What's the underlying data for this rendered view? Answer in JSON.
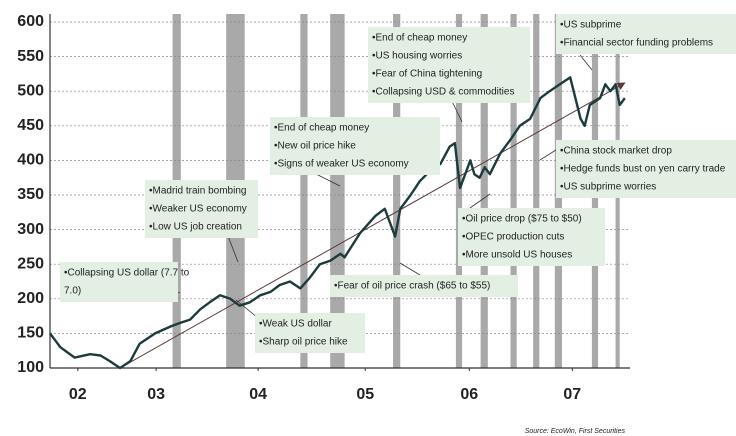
{
  "chart_data": {
    "type": "line",
    "x": [
      2002.47,
      2002.52,
      2002.57,
      2002.71,
      2002.86,
      2002.96,
      2003.05,
      2003.15,
      2003.25,
      2003.34,
      2003.49,
      2003.64,
      2003.73,
      2003.83,
      2003.93,
      2004.02,
      2004.12,
      2004.22,
      2004.31,
      2004.41,
      2004.51,
      2004.61,
      2004.7,
      2004.8,
      2004.9,
      2004.99,
      2005.09,
      2005.19,
      2005.29,
      2005.33,
      2005.48,
      2005.63,
      2005.72,
      2005.82,
      2005.87,
      2005.97,
      2006.06,
      2006.16,
      2006.26,
      2006.35,
      2006.4,
      2006.45,
      2006.5,
      2006.55,
      2006.59,
      2006.64,
      2006.69,
      2006.74,
      2006.84,
      2006.94,
      2007.03,
      2007.13,
      2007.23,
      2007.32,
      2007.42,
      2007.52,
      2007.57,
      2007.62,
      2007.66,
      2007.71,
      2007.81,
      2007.86,
      2007.91,
      2007.96,
      2008.0,
      2008.05
    ],
    "values": [
      150,
      140,
      130,
      115,
      120,
      118,
      110,
      100,
      110,
      135,
      150,
      160,
      165,
      170,
      185,
      195,
      205,
      200,
      190,
      195,
      205,
      210,
      220,
      225,
      215,
      230,
      250,
      255,
      265,
      260,
      295,
      320,
      330,
      290,
      330,
      350,
      370,
      385,
      395,
      420,
      425,
      360,
      380,
      400,
      380,
      375,
      390,
      380,
      410,
      430,
      450,
      460,
      490,
      500,
      510,
      520,
      490,
      460,
      450,
      480,
      490,
      510,
      500,
      510,
      480,
      490
    ],
    "color": "#1c3b3d",
    "trend_line": {
      "x": [
        2003.15,
        2008.05
      ],
      "values": [
        100,
        512
      ],
      "color": "#5a3a3a"
    },
    "shaded_periods": [
      [
        2003.66,
        2003.74
      ],
      [
        2004.18,
        2004.36
      ],
      [
        2004.9,
        2004.97
      ],
      [
        2005.19,
        2005.33
      ],
      [
        2005.8,
        2005.87
      ],
      [
        2006.41,
        2006.47
      ],
      [
        2006.65,
        2006.72
      ],
      [
        2006.94,
        2007.0
      ],
      [
        2007.16,
        2007.22
      ],
      [
        2007.37,
        2007.44
      ],
      [
        2007.73,
        2007.79
      ],
      [
        2007.96,
        2008.0
      ]
    ],
    "shade_color": "#a9a9a9",
    "xlim": [
      2002.47,
      2008.1
    ],
    "ylim": [
      100,
      600
    ],
    "xticks": [
      {
        "value": 2002.74,
        "label": "02"
      },
      {
        "value": 2003.5,
        "label": "03"
      },
      {
        "value": 2004.49,
        "label": "04"
      },
      {
        "value": 2005.53,
        "label": "05"
      },
      {
        "value": 2006.54,
        "label": "06"
      },
      {
        "value": 2007.54,
        "label": "07"
      }
    ],
    "yticks": [
      100,
      150,
      200,
      250,
      300,
      350,
      400,
      450,
      500,
      550,
      600
    ],
    "grid": true,
    "annotations": [
      {
        "lines": [
          "•Collapsing US dollar (7.7 to",
          "7.0)"
        ]
      },
      {
        "lines": [
          "•Madrid train bombing",
          "•Weaker US economy",
          "•Low US job creation"
        ]
      },
      {
        "lines": [
          "•End of cheap money",
          "•New oil price hike",
          "•Signs of weaker US economy"
        ]
      },
      {
        "lines": [
          "•End of cheap money",
          "•US housing worries",
          "•Fear of China tightening",
          "•Collapsing USD & commodities"
        ]
      },
      {
        "lines": [
          "•US subprime",
          "•Financial sector funding problems"
        ]
      },
      {
        "lines": [
          "•China stock market drop",
          "•Hedge funds bust on yen carry trade",
          "•US subprime worries"
        ]
      },
      {
        "lines": [
          "•Oil price drop ($75 to $50)",
          "•OPEC production cuts",
          "•More unsold US houses"
        ]
      },
      {
        "lines": [
          "•Fear of oil price crash ($65 to $55)"
        ]
      },
      {
        "lines": [
          "•Weak US dollar",
          "•Sharp oil price hike"
        ]
      }
    ],
    "source": "Source: EcoWin, First Securities"
  }
}
